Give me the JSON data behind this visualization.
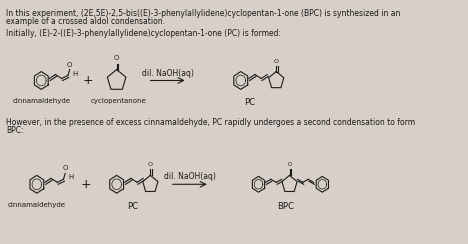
{
  "bg_color": "#d8d0c8",
  "text_color": "#1a1a1a",
  "title_line1": "In this experiment, (2E,5E)-2,5-bis((E)-3-phenylallylidene)cyclopentan-1-one (BPC) is synthesized in an",
  "title_line2": "example of a crossed aldol condensation.",
  "subtitle": "Initially, (E)-2-((E)-3-phenylallylidene)cyclopentan-1-one (PC) is formed:",
  "subtitle_bold_word": "PC",
  "however_line1": "However, in the presence of excess cinnamaldehyde, PC rapidly undergoes a second condensation to form",
  "however_line2": "BPC:",
  "label_cinnam1": "cinnamaldehyde",
  "label_cyclo": "cyclopentanone",
  "label_PC_top": "PC",
  "label_cinnam2": "cinnamaldehyde",
  "label_PC_bot": "PC",
  "label_BPC": "BPC",
  "arrow_label": "dil. NaOH(aq)",
  "font_size_main": 5.5,
  "font_size_label": 5.0,
  "font_size_arrow": 5.5
}
